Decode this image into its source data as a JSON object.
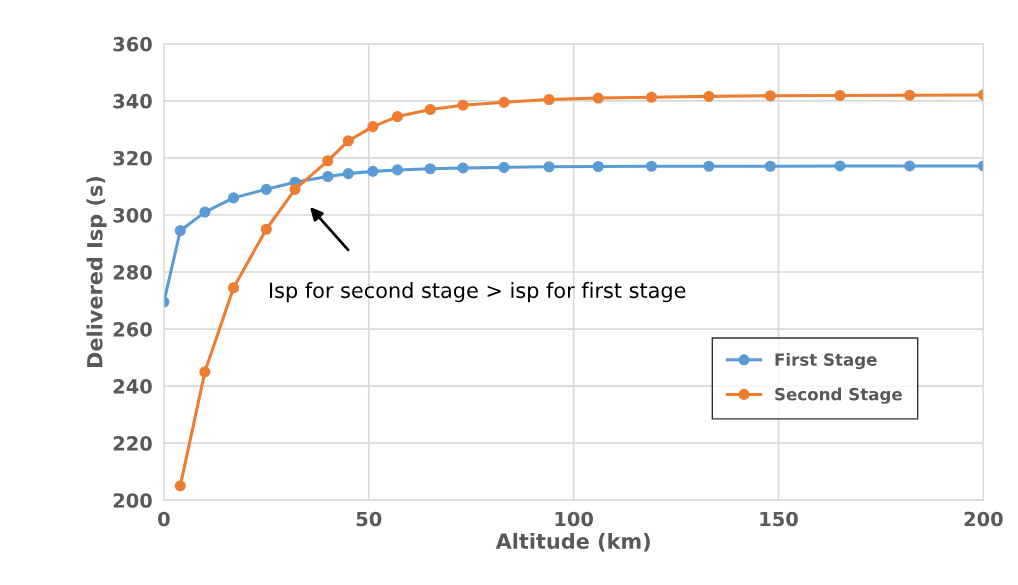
{
  "chart_data": {
    "type": "line",
    "xlabel": "Altitude (km)",
    "ylabel": "Delivered Isp (s)",
    "series": [
      {
        "name": "First Stage",
        "color": "#5b9bd5",
        "x": [
          0,
          4,
          10,
          17,
          25,
          32,
          40,
          45,
          51,
          57,
          65,
          73,
          83,
          94,
          106,
          119,
          133,
          148,
          165,
          182,
          200
        ],
        "values": [
          269.5,
          294.5,
          301,
          306,
          309,
          311.5,
          313.5,
          314.5,
          315.3,
          315.8,
          316.2,
          316.5,
          316.7,
          316.9,
          317,
          317.1,
          317.1,
          317.1,
          317.2,
          317.2,
          317.2
        ]
      },
      {
        "name": "Second Stage",
        "color": "#ed7d31",
        "x": [
          4,
          10,
          17,
          25,
          32,
          40,
          45,
          51,
          57,
          65,
          73,
          83,
          94,
          106,
          119,
          133,
          148,
          165,
          182,
          200
        ],
        "values": [
          205,
          245,
          274.5,
          295,
          309,
          319,
          326,
          331,
          334.5,
          337,
          338.5,
          339.5,
          340.5,
          341,
          341.3,
          341.6,
          341.8,
          341.9,
          342,
          342.1
        ]
      }
    ],
    "xlim": [
      0,
      200
    ],
    "xticks": [
      0,
      50,
      100,
      150,
      200
    ],
    "ylim": [
      200,
      360
    ],
    "yticks": [
      200,
      220,
      240,
      260,
      280,
      300,
      320,
      340,
      360
    ],
    "grid": true,
    "legend": "bottom right",
    "marker": "circle",
    "line_style": "solid",
    "annotations": [
      "Isp for second stage > isp for first stage"
    ]
  }
}
